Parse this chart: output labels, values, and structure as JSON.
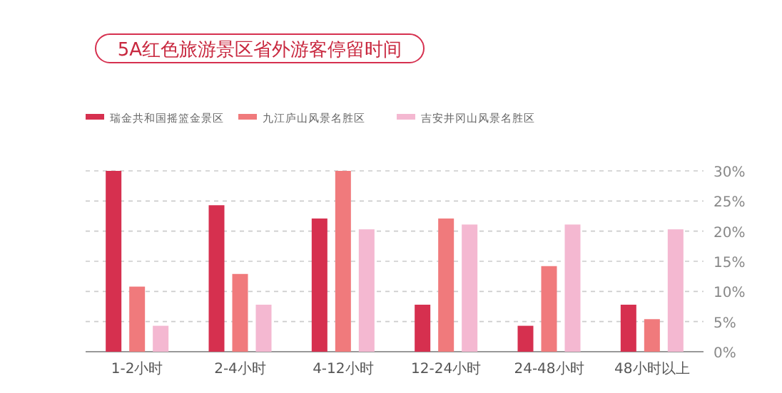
{
  "chart_data": {
    "type": "bar",
    "title": "5A红色旅游景区省外游客停留时间",
    "categories": [
      "1-2小时",
      "2-4小时",
      "4-12小时",
      "12-24小时",
      "24-48小时",
      "48小时以上"
    ],
    "series": [
      {
        "name": "瑞金共和国摇篮金景区",
        "color": "#d6304f",
        "values": [
          30,
          24.3,
          22.1,
          7.8,
          4.3,
          7.8
        ]
      },
      {
        "name": "九江庐山风景名胜区",
        "color": "#f07a7c",
        "values": [
          10.8,
          12.9,
          30,
          22.1,
          14.2,
          5.4
        ]
      },
      {
        "name": "吉安井冈山风景名胜区",
        "color": "#f4b8d1",
        "values": [
          4.3,
          7.8,
          20.3,
          21.1,
          21.1,
          20.3
        ]
      }
    ],
    "ylim": [
      0,
      30
    ],
    "yticks": [
      {
        "value": 0,
        "label": "0%"
      },
      {
        "value": 5,
        "label": "5%"
      },
      {
        "value": 10,
        "label": "10%"
      },
      {
        "value": 15,
        "label": "15%"
      },
      {
        "value": 20,
        "label": "20%"
      },
      {
        "value": 25,
        "label": "25%"
      },
      {
        "value": 30,
        "label": "30%"
      }
    ],
    "grid": "y",
    "legend": "top"
  }
}
